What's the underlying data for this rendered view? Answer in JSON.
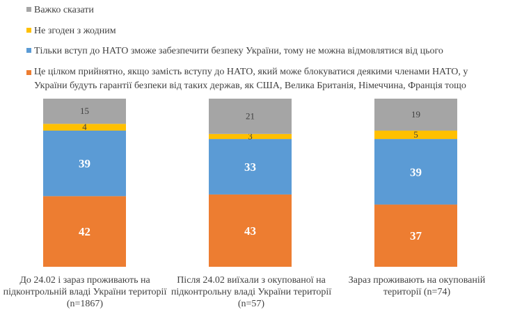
{
  "chart_data": {
    "type": "bar",
    "stacked": true,
    "categories": [
      "До 24.02 і зараз проживають на підконтрольній владі України території (n=1867)",
      "Після 24.02 виїхали з окупованої на підконтрольну владі України території (n=57)",
      "Зараз проживають на окупованій території (n=74)"
    ],
    "series": [
      {
        "name": "Це цілком прийнятно, якщо замість вступу до НАТО, який може блокуватися деякими членами НАТО, у України будуть гарантії безпеки від таких держав, як США, Велика Британія, Німеччина, Франція тощо",
        "color": "#ED7D31",
        "values": [
          42,
          43,
          37
        ]
      },
      {
        "name": "Тільки вступ до НАТО зможе забезпечити безпеку України, тому не можна відмовлятися від цього",
        "color": "#5B9BD5",
        "values": [
          39,
          33,
          39
        ]
      },
      {
        "name": "Не згоден з жодним",
        "color": "#FFC000",
        "values": [
          4,
          3,
          5
        ]
      },
      {
        "name": "Важко сказати",
        "color": "#A5A5A5",
        "values": [
          15,
          21,
          19
        ]
      }
    ],
    "legend_order": [
      3,
      2,
      1,
      0
    ],
    "legend_position": "top",
    "ylim": [
      0,
      100
    ],
    "grid": false,
    "axes_visible": false,
    "data_labels": true
  }
}
